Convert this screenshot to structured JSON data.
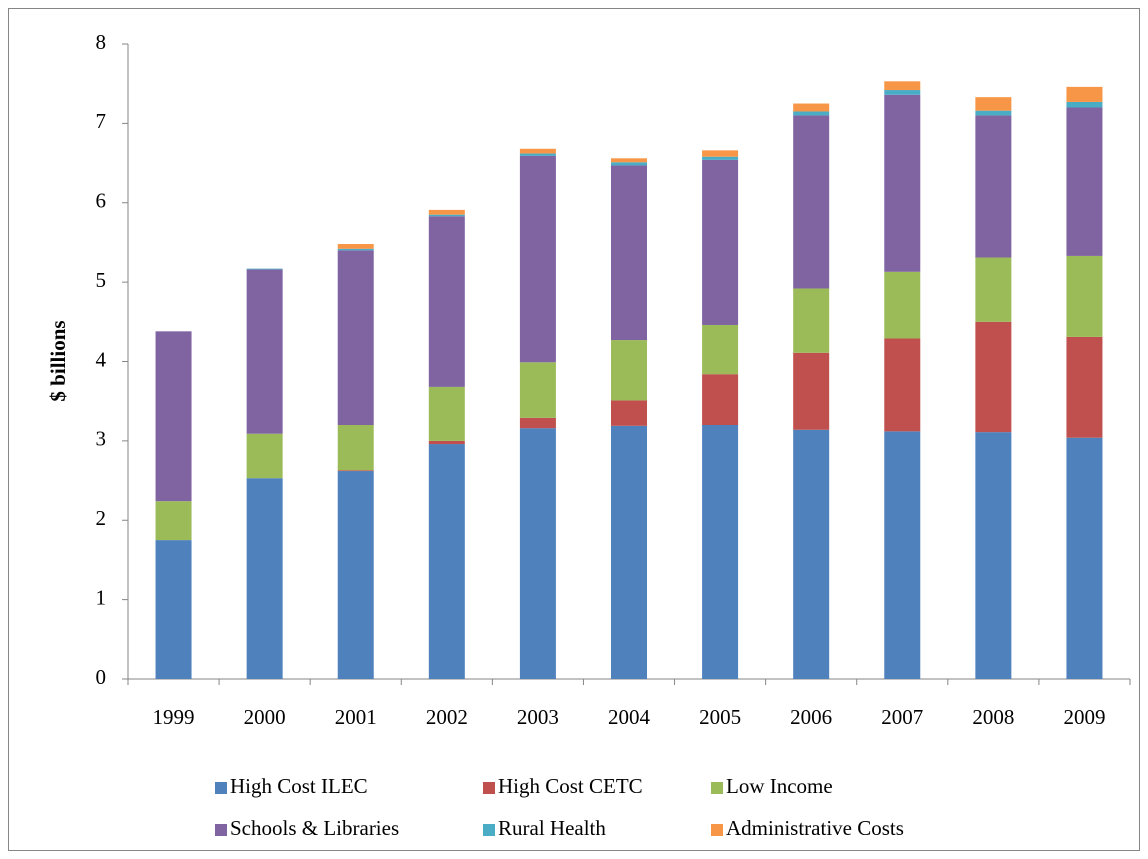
{
  "chart_data": {
    "type": "stacked-bar",
    "y_label": "$ billions",
    "categories": [
      "1999",
      "2000",
      "2001",
      "2002",
      "2003",
      "2004",
      "2005",
      "2006",
      "2007",
      "2008",
      "2009"
    ],
    "series": [
      {
        "name": "High Cost ILEC",
        "color": "#4f81bd",
        "values": [
          1.75,
          2.53,
          2.62,
          2.96,
          3.16,
          3.19,
          3.2,
          3.14,
          3.12,
          3.11,
          3.04
        ]
      },
      {
        "name": "High Cost CETC",
        "color": "#c0504d",
        "values": [
          0,
          0,
          0.01,
          0.04,
          0.13,
          0.32,
          0.64,
          0.97,
          1.17,
          1.39,
          1.27
        ]
      },
      {
        "name": "Low Income",
        "color": "#9bbb59",
        "values": [
          0.49,
          0.56,
          0.57,
          0.68,
          0.7,
          0.76,
          0.62,
          0.81,
          0.84,
          0.81,
          1.02
        ]
      },
      {
        "name": "Schools & Libraries",
        "color": "#8064a2",
        "values": [
          2.14,
          2.07,
          2.2,
          2.15,
          2.6,
          2.2,
          2.08,
          2.18,
          2.23,
          1.79,
          1.87
        ]
      },
      {
        "name": "Rural Health",
        "color": "#4bacc6",
        "values": [
          0,
          0.01,
          0.02,
          0.02,
          0.03,
          0.04,
          0.04,
          0.05,
          0.06,
          0.06,
          0.07
        ]
      },
      {
        "name": "Administrative Costs",
        "color": "#f79646",
        "values": [
          0,
          0,
          0.06,
          0.06,
          0.06,
          0.05,
          0.08,
          0.1,
          0.11,
          0.17,
          0.19
        ]
      }
    ],
    "ylim": [
      0,
      8
    ],
    "yticks": [
      0,
      1,
      2,
      3,
      4,
      5,
      6,
      7,
      8
    ],
    "grid": false
  }
}
